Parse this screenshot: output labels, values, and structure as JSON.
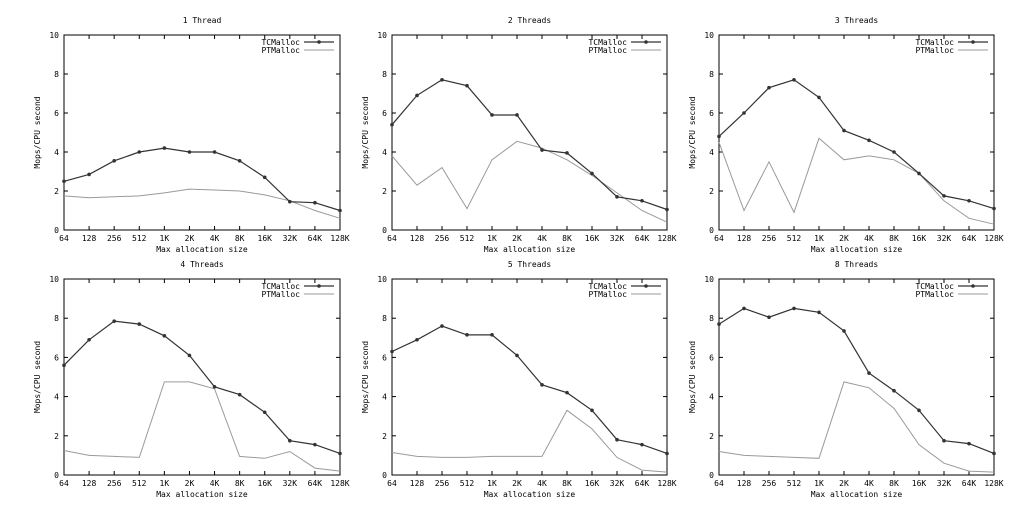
{
  "chart_data": [
    {
      "type": "line",
      "title": "1 Thread",
      "xlabel": "Max allocation size",
      "ylabel": "Mops/CPU second",
      "categories": [
        "64",
        "128",
        "256",
        "512",
        "1K",
        "2K",
        "4K",
        "8K",
        "16K",
        "32K",
        "64K",
        "128K"
      ],
      "ylim": [
        0,
        10
      ],
      "yticks": [
        0,
        2,
        4,
        6,
        8,
        10
      ],
      "series": [
        {
          "name": "TCMalloc",
          "values": [
            2.5,
            2.85,
            3.55,
            4.0,
            4.2,
            4.0,
            4.0,
            3.55,
            2.7,
            1.45,
            1.4,
            1.0
          ]
        },
        {
          "name": "PTMalloc",
          "values": [
            1.75,
            1.65,
            1.7,
            1.75,
            1.9,
            2.1,
            2.05,
            2.0,
            1.8,
            1.5,
            1.0,
            0.6
          ]
        }
      ]
    },
    {
      "type": "line",
      "title": "2 Threads",
      "xlabel": "Max allocation size",
      "ylabel": "Mops/CPU second",
      "categories": [
        "64",
        "128",
        "256",
        "512",
        "1K",
        "2K",
        "4K",
        "8K",
        "16K",
        "32K",
        "64K",
        "128K"
      ],
      "ylim": [
        0,
        10
      ],
      "yticks": [
        0,
        2,
        4,
        6,
        8,
        10
      ],
      "series": [
        {
          "name": "TCMalloc",
          "values": [
            5.4,
            6.9,
            7.7,
            7.4,
            5.9,
            5.9,
            4.1,
            3.95,
            2.9,
            1.7,
            1.5,
            1.05
          ]
        },
        {
          "name": "PTMalloc",
          "values": [
            3.8,
            2.3,
            3.2,
            1.1,
            3.6,
            4.55,
            4.2,
            3.6,
            2.8,
            1.9,
            1.0,
            0.4
          ]
        }
      ]
    },
    {
      "type": "line",
      "title": "3 Threads",
      "xlabel": "Max allocation size",
      "ylabel": "Mops/CPU second",
      "categories": [
        "64",
        "128",
        "256",
        "512",
        "1K",
        "2K",
        "4K",
        "8K",
        "16K",
        "32K",
        "64K",
        "128K"
      ],
      "ylim": [
        0,
        10
      ],
      "yticks": [
        0,
        2,
        4,
        6,
        8,
        10
      ],
      "series": [
        {
          "name": "TCMalloc",
          "values": [
            4.8,
            6.0,
            7.3,
            7.7,
            6.8,
            5.1,
            4.6,
            4.0,
            2.9,
            1.75,
            1.5,
            1.1
          ]
        },
        {
          "name": "PTMalloc",
          "values": [
            4.5,
            1.0,
            3.5,
            0.9,
            4.7,
            3.6,
            3.8,
            3.6,
            2.9,
            1.5,
            0.6,
            0.3
          ]
        }
      ]
    },
    {
      "type": "line",
      "title": "4 Threads",
      "xlabel": "Max allocation size",
      "ylabel": "Mops/CPU second",
      "categories": [
        "64",
        "128",
        "256",
        "512",
        "1K",
        "2K",
        "4K",
        "8K",
        "16K",
        "32K",
        "64K",
        "128K"
      ],
      "ylim": [
        0,
        10
      ],
      "yticks": [
        0,
        2,
        4,
        6,
        8,
        10
      ],
      "series": [
        {
          "name": "TCMalloc",
          "values": [
            5.6,
            6.9,
            7.85,
            7.7,
            7.1,
            6.1,
            4.5,
            4.1,
            3.2,
            1.75,
            1.55,
            1.1
          ]
        },
        {
          "name": "PTMalloc",
          "values": [
            1.25,
            1.0,
            0.95,
            0.9,
            4.75,
            4.75,
            4.4,
            0.95,
            0.85,
            1.2,
            0.35,
            0.2
          ]
        }
      ]
    },
    {
      "type": "line",
      "title": "5 Threads",
      "xlabel": "Max allocation size",
      "ylabel": "Mops/CPU second",
      "categories": [
        "64",
        "128",
        "256",
        "512",
        "1K",
        "2K",
        "4K",
        "8K",
        "16K",
        "32K",
        "64K",
        "128K"
      ],
      "ylim": [
        0,
        10
      ],
      "yticks": [
        0,
        2,
        4,
        6,
        8,
        10
      ],
      "series": [
        {
          "name": "TCMalloc",
          "values": [
            6.3,
            6.9,
            7.6,
            7.15,
            7.15,
            6.1,
            4.6,
            4.2,
            3.3,
            1.8,
            1.55,
            1.1
          ]
        },
        {
          "name": "PTMalloc",
          "values": [
            1.15,
            0.95,
            0.9,
            0.9,
            0.95,
            0.95,
            0.95,
            3.3,
            2.35,
            0.9,
            0.25,
            0.15
          ]
        }
      ]
    },
    {
      "type": "line",
      "title": "8 Threads",
      "xlabel": "Max allocation size",
      "ylabel": "Mops/CPU second",
      "categories": [
        "64",
        "128",
        "256",
        "512",
        "1K",
        "2K",
        "4K",
        "8K",
        "16K",
        "32K",
        "64K",
        "128K"
      ],
      "ylim": [
        0,
        10
      ],
      "yticks": [
        0,
        2,
        4,
        6,
        8,
        10
      ],
      "series": [
        {
          "name": "TCMalloc",
          "values": [
            7.7,
            8.5,
            8.05,
            8.5,
            8.3,
            7.35,
            5.2,
            4.3,
            3.3,
            1.75,
            1.6,
            1.1
          ]
        },
        {
          "name": "PTMalloc",
          "values": [
            1.2,
            1.0,
            0.95,
            0.9,
            0.85,
            4.75,
            4.45,
            3.4,
            1.55,
            0.6,
            0.2,
            0.15
          ]
        }
      ]
    }
  ],
  "colors": {
    "TCMalloc": "#333333",
    "PTMalloc": "#9a9a9a",
    "axis": "#000000"
  }
}
